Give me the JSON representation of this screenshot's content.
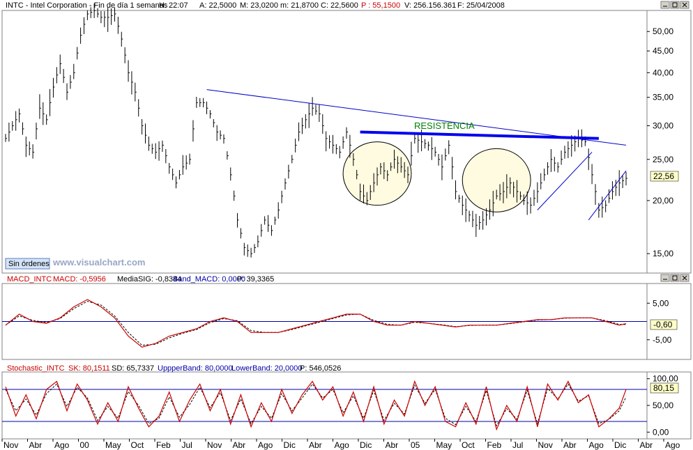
{
  "colors": {
    "price": "#000000",
    "trend": "#0000cc",
    "resistance": "#0000ee",
    "resistance_text": "#008000",
    "ellipse_fill": "#fffbe0",
    "macd": "#cc0000",
    "signal": "#000000",
    "band": "#0000aa",
    "stoch_k": "#cc0000",
    "stoch_d": "#000000",
    "label_bg": "#ffffc8",
    "panel_border": "#808080",
    "grid": "#d0d0d0",
    "header_red": "#cc0000",
    "header_blue": "#0000aa"
  },
  "price_panel": {
    "header": {
      "title": "INTC - Intel Corporation - Fin de día 1 semanas",
      "h": "H: 22:07",
      "a": "A: 22,5000",
      "m": "M: 23,0200",
      "mn": "m: 21,8700",
      "c": "C: 22,5600",
      "p": "P : 55,1500",
      "v": "V: 256.156.361",
      "f": "F: 25/04/2008"
    },
    "last_value_label": "22,56",
    "annotation": "RESISTENCIA",
    "no_orders_button": "Sin órdenes",
    "watermark": "www.visualchart.com",
    "y_ticks": [
      "50,00",
      "45,00",
      "40,00",
      "35,00",
      "30,00",
      "25,00",
      "20,00",
      "15,00"
    ]
  },
  "macd_panel": {
    "header": {
      "name": "MACD_INTC",
      "macd": "MACD: -0,5956",
      "signal": "MediaSIG: -0,8344",
      "band": "Band_MACD: 0,0000",
      "p": "P: 39,3365"
    },
    "last_value_label": "-0,60",
    "y_ticks": [
      "5,00",
      "-5,00"
    ]
  },
  "stoch_panel": {
    "header": {
      "name": "Stochastic_INTC",
      "sk": "SK: 80,1511",
      "sd": "SD: 65,7337",
      "upper": "UppperBand: 80,0000",
      "lower": "LowerBand: 20,0000",
      "p": "P: 546,0526"
    },
    "last_value_label": "80,15",
    "y_ticks": [
      "100,00",
      "50,00",
      "0,00"
    ]
  },
  "x_axis_labels": [
    "Nov",
    "Abr",
    "Ago",
    "00",
    "May",
    "Oct",
    "Feb",
    "Jul",
    "Nov",
    "Abr",
    "Ago",
    "Dic",
    "Abr",
    "Ago",
    "Dic",
    "Abr",
    "05",
    "May",
    "Oct",
    "Feb",
    "Jul",
    "Nov",
    "Abr",
    "Ago",
    "Dic",
    "Abr",
    "Ago"
  ],
  "chart_data": [
    {
      "type": "line",
      "title": "INTC - Intel Corporation - Fin de día 1 semanas",
      "scale": "log",
      "ylim": [
        13.5,
        55
      ],
      "grid": false,
      "x_index_range": [
        0,
        182
      ],
      "close_series": {
        "x": [
          0,
          2,
          4,
          6,
          8,
          10,
          12,
          14,
          16,
          18,
          20,
          22,
          24,
          26,
          28,
          30,
          32,
          34,
          36,
          38,
          40,
          42,
          44,
          46,
          48,
          50,
          52,
          54,
          56,
          58,
          60,
          62,
          64,
          66,
          68,
          70,
          72,
          74,
          76,
          78,
          80,
          82,
          84,
          86,
          88,
          90,
          92,
          94,
          96,
          98,
          100,
          102,
          104,
          106,
          108,
          110,
          112,
          114,
          116,
          118,
          120,
          122,
          124,
          126,
          128,
          130,
          132,
          134,
          136,
          138,
          140,
          142,
          144,
          146,
          148,
          150,
          152,
          154,
          156,
          158,
          160,
          162,
          164,
          166,
          168,
          170,
          172,
          174,
          176,
          178,
          180,
          182
        ],
        "y": [
          28,
          30,
          32,
          27,
          26,
          33,
          31,
          37,
          42,
          36,
          40,
          49,
          55,
          56,
          54,
          54,
          55,
          48,
          40,
          36,
          30,
          27,
          26,
          27,
          24,
          22,
          24,
          25,
          34,
          34,
          32,
          29,
          28,
          23,
          18,
          15.5,
          15,
          16,
          18,
          17,
          19,
          22,
          25,
          29,
          31,
          33,
          32,
          28,
          27,
          26,
          29,
          25,
          21,
          20,
          22,
          24,
          23,
          25,
          24,
          23,
          28,
          27.5,
          27,
          26,
          24,
          27,
          21,
          19.5,
          18.5,
          17.5,
          18,
          19,
          20.5,
          21,
          22,
          21,
          20,
          19.5,
          21,
          23,
          25,
          24,
          26,
          27,
          28,
          27.5,
          23,
          19,
          19.5,
          21,
          22,
          22.56
        ]
      },
      "trendline_resistance": {
        "x": [
          59,
          182
        ],
        "y": [
          36.5,
          27.0
        ]
      },
      "resistance_level": {
        "x": [
          104,
          174
        ],
        "y": [
          29.0,
          28.0
        ]
      },
      "support_line_1": {
        "x": [
          156,
          172
        ],
        "y": [
          19.0,
          26.0
        ]
      },
      "support_line_2": {
        "x": [
          171,
          182
        ],
        "y": [
          18.0,
          23.5
        ]
      },
      "ellipses": [
        {
          "x_center": 109,
          "x_halfwidth": 10,
          "y_center": 23.0,
          "y_top": 27.5,
          "y_bottom": 19.5
        },
        {
          "x_center": 144,
          "x_halfwidth": 10,
          "y_center": 22.0,
          "y_top": 26.5,
          "y_bottom": 18.8
        }
      ]
    },
    {
      "type": "line",
      "title": "MACD_INTC",
      "ylim": [
        -10,
        10
      ],
      "series": [
        {
          "name": "MACD",
          "x": [
            0,
            4,
            8,
            12,
            16,
            20,
            24,
            28,
            32,
            36,
            40,
            44,
            48,
            52,
            56,
            60,
            64,
            68,
            72,
            76,
            80,
            84,
            88,
            92,
            96,
            100,
            104,
            108,
            112,
            116,
            120,
            124,
            128,
            132,
            136,
            140,
            144,
            148,
            152,
            156,
            160,
            164,
            168,
            172,
            176,
            180,
            182
          ],
          "y": [
            -1,
            2,
            0,
            -0.5,
            1,
            4,
            6,
            4,
            1,
            -4,
            -7,
            -6,
            -4,
            -3,
            -2,
            0,
            1,
            0,
            -3,
            -3,
            -3,
            -2,
            -1,
            0,
            1,
            2,
            2,
            0,
            -1,
            -1,
            0,
            -0.5,
            -1,
            -1.5,
            -1,
            -1,
            -1,
            -0.5,
            0,
            0.5,
            0.5,
            1,
            1,
            1,
            0,
            -1,
            -0.5956
          ]
        },
        {
          "name": "MediaSIG",
          "x": [
            0,
            4,
            8,
            12,
            16,
            20,
            24,
            28,
            32,
            36,
            40,
            44,
            48,
            52,
            56,
            60,
            64,
            68,
            72,
            76,
            80,
            84,
            88,
            92,
            96,
            100,
            104,
            108,
            112,
            116,
            120,
            124,
            128,
            132,
            136,
            140,
            144,
            148,
            152,
            156,
            160,
            164,
            168,
            172,
            176,
            180,
            182
          ],
          "y": [
            -1,
            1.5,
            0.3,
            -0.3,
            0.8,
            3.5,
            5.5,
            4.5,
            1.5,
            -3,
            -6.5,
            -6.2,
            -4.5,
            -3.2,
            -2.2,
            -0.3,
            0.8,
            0.2,
            -2.5,
            -3,
            -3,
            -2.2,
            -1.2,
            -0.2,
            0.8,
            1.8,
            2,
            0.3,
            -0.8,
            -1,
            -0.2,
            -0.5,
            -0.9,
            -1.4,
            -1.1,
            -1,
            -1,
            -0.6,
            -0.1,
            0.4,
            0.5,
            0.9,
            1,
            1,
            0.2,
            -0.8,
            -0.8344
          ]
        }
      ],
      "band": 0
    },
    {
      "type": "line",
      "title": "Stochastic_INTC",
      "ylim": [
        -10,
        110
      ],
      "series": [
        {
          "name": "SK",
          "x": [
            0,
            3,
            6,
            9,
            12,
            15,
            18,
            21,
            24,
            27,
            30,
            33,
            36,
            39,
            42,
            45,
            48,
            51,
            54,
            57,
            60,
            63,
            66,
            69,
            72,
            75,
            78,
            81,
            84,
            87,
            90,
            93,
            96,
            99,
            102,
            105,
            108,
            111,
            114,
            117,
            120,
            123,
            126,
            129,
            132,
            135,
            138,
            141,
            144,
            147,
            150,
            153,
            156,
            159,
            162,
            165,
            168,
            171,
            174,
            177,
            180,
            182
          ],
          "y": [
            85,
            30,
            70,
            25,
            80,
            95,
            40,
            90,
            60,
            15,
            55,
            20,
            85,
            45,
            10,
            30,
            75,
            20,
            60,
            90,
            40,
            80,
            15,
            70,
            10,
            55,
            20,
            80,
            35,
            70,
            95,
            60,
            85,
            30,
            75,
            20,
            85,
            15,
            60,
            30,
            95,
            50,
            85,
            20,
            10,
            55,
            15,
            85,
            5,
            50,
            20,
            85,
            10,
            90,
            60,
            95,
            55,
            70,
            10,
            25,
            45,
            80.15
          ]
        },
        {
          "name": "SD",
          "x": [
            0,
            3,
            6,
            9,
            12,
            15,
            18,
            21,
            24,
            27,
            30,
            33,
            36,
            39,
            42,
            45,
            48,
            51,
            54,
            57,
            60,
            63,
            66,
            69,
            72,
            75,
            78,
            81,
            84,
            87,
            90,
            93,
            96,
            99,
            102,
            105,
            108,
            111,
            114,
            117,
            120,
            123,
            126,
            129,
            132,
            135,
            138,
            141,
            144,
            147,
            150,
            153,
            156,
            159,
            162,
            165,
            168,
            171,
            174,
            177,
            180,
            182
          ],
          "y": [
            80,
            40,
            62,
            32,
            72,
            90,
            48,
            84,
            64,
            22,
            48,
            26,
            76,
            50,
            16,
            26,
            66,
            28,
            52,
            84,
            46,
            74,
            22,
            62,
            16,
            48,
            26,
            72,
            40,
            64,
            90,
            64,
            80,
            36,
            68,
            26,
            78,
            22,
            54,
            34,
            88,
            54,
            80,
            26,
            14,
            48,
            20,
            78,
            12,
            44,
            24,
            78,
            16,
            82,
            62,
            90,
            58,
            68,
            16,
            24,
            40,
            65.73
          ]
        }
      ],
      "upper_band": 80,
      "lower_band": 20
    }
  ]
}
